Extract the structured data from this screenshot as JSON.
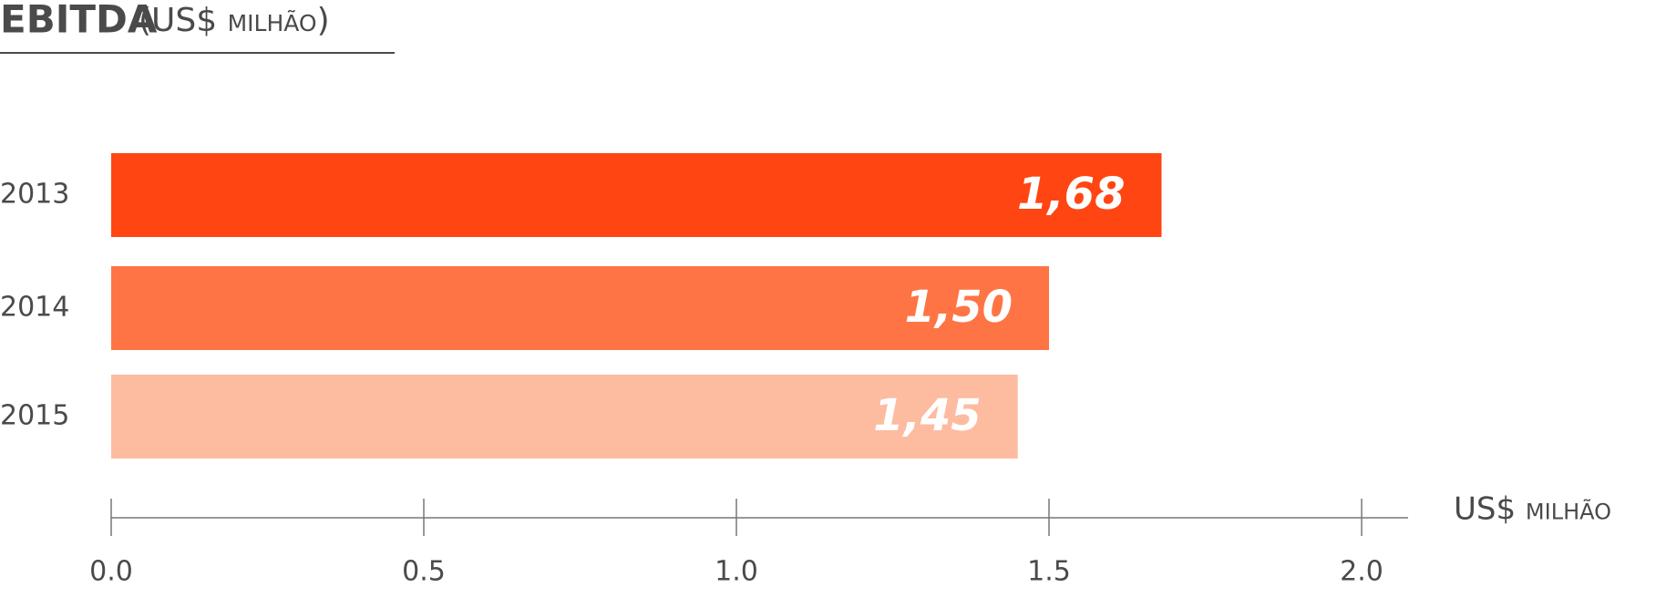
{
  "chart_data": {
    "type": "bar",
    "orientation": "horizontal",
    "title": "EBITDA",
    "subtitle": "(US$ milhão)",
    "categories": [
      "2013",
      "2014",
      "2015"
    ],
    "values": [
      1.68,
      1.5,
      1.45
    ],
    "value_labels": [
      "1,68",
      "1,50",
      "1,45"
    ],
    "colors": [
      "#ff4612",
      "#ff7445",
      "#fdbba0"
    ],
    "xlabel": "US$ milhão",
    "xlim": [
      0,
      2
    ],
    "xticks": [
      {
        "value": 0,
        "label": "0.0"
      },
      {
        "value": 0.5,
        "label": "0.5"
      },
      {
        "value": 1,
        "label": "1.0"
      },
      {
        "value": 1.5,
        "label": "1.5"
      },
      {
        "value": 2,
        "label": "2.0"
      }
    ]
  }
}
